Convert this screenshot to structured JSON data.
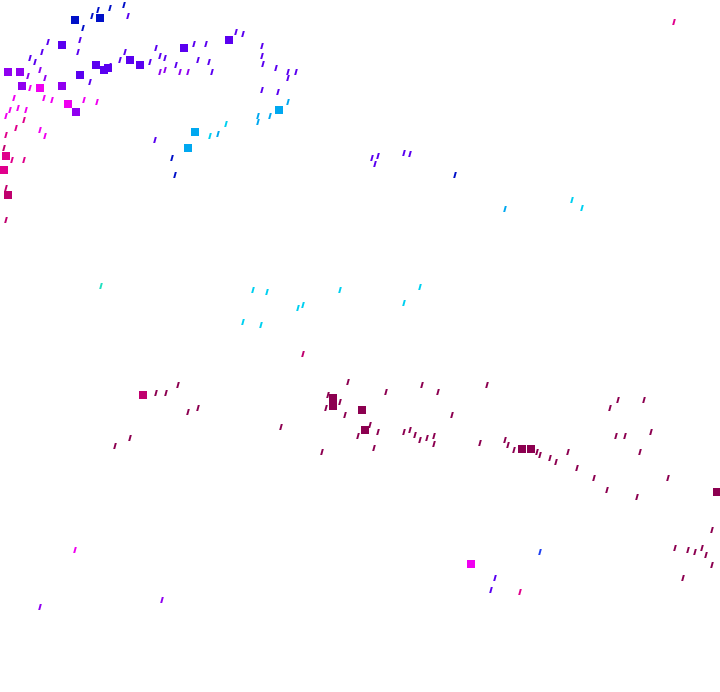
{
  "background": "#ffffff",
  "palette": {
    "navy": "#0010c8",
    "violet": "#5a00f0",
    "purple": "#9000f0",
    "magenta": "#f000f0",
    "pink": "#e0008c",
    "crimson": "#c0006e",
    "maroon": "#8c0050",
    "sky": "#00a8f0",
    "cyan": "#00d0f0",
    "teal": "#20e0c0",
    "blue": "#2040f0"
  }
}
